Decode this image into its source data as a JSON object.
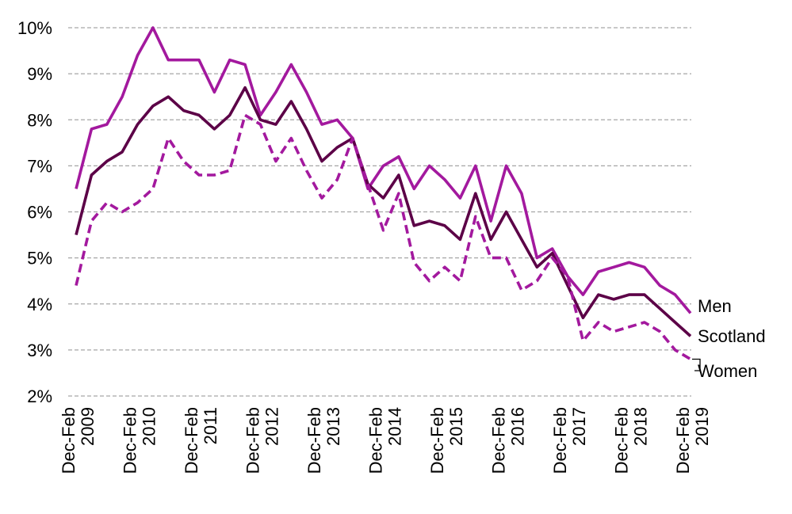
{
  "chart_data": {
    "type": "line",
    "title": "",
    "xlabel": "",
    "ylabel": "",
    "ylim": [
      2,
      10
    ],
    "y_ticks": [
      "2%",
      "3%",
      "4%",
      "5%",
      "6%",
      "7%",
      "8%",
      "9%",
      "10%"
    ],
    "grid": true,
    "legend": "inline-right",
    "x_tick_labels": [
      {
        "index": 0,
        "label": "Dec-Feb 2009"
      },
      {
        "index": 4,
        "label": "Dec-Feb 2010"
      },
      {
        "index": 8,
        "label": "Dec-Feb 2011"
      },
      {
        "index": 12,
        "label": "Dec-Feb 2012"
      },
      {
        "index": 16,
        "label": "Dec-Feb 2013"
      },
      {
        "index": 20,
        "label": "Dec-Feb 2014"
      },
      {
        "index": 24,
        "label": "Dec-Feb 2015"
      },
      {
        "index": 28,
        "label": "Dec-Feb 2016"
      },
      {
        "index": 32,
        "label": "Dec-Feb 2017"
      },
      {
        "index": 36,
        "label": "Dec-Feb 2018"
      },
      {
        "index": 40,
        "label": "Dec-Feb 2019"
      }
    ],
    "series": [
      {
        "name": "Men",
        "color": "#a3199e",
        "dash": "solid",
        "values": [
          6.5,
          7.8,
          7.9,
          8.5,
          9.4,
          10.0,
          9.3,
          9.3,
          9.3,
          8.6,
          9.3,
          9.2,
          8.1,
          8.6,
          9.2,
          8.6,
          7.9,
          8.0,
          7.6,
          6.5,
          7.0,
          7.2,
          6.5,
          7.0,
          6.7,
          6.3,
          7.0,
          5.8,
          7.0,
          6.4,
          5.0,
          5.2,
          4.6,
          4.2,
          4.7,
          4.8,
          4.9,
          4.8,
          4.4,
          4.2,
          3.8
        ]
      },
      {
        "name": "Scotland",
        "color": "#5c0047",
        "dash": "solid",
        "values": [
          5.5,
          6.8,
          7.1,
          7.3,
          7.9,
          8.3,
          8.5,
          8.2,
          8.1,
          7.8,
          8.1,
          8.7,
          8.0,
          7.9,
          8.4,
          7.8,
          7.1,
          7.4,
          7.6,
          6.6,
          6.3,
          6.8,
          5.7,
          5.8,
          5.7,
          5.4,
          6.4,
          5.4,
          6.0,
          5.4,
          4.8,
          5.1,
          4.4,
          3.7,
          4.2,
          4.1,
          4.2,
          4.2,
          3.9,
          3.6,
          3.3
        ]
      },
      {
        "name": "Women",
        "color": "#a3199e",
        "dash": "dashed",
        "values": [
          4.4,
          5.8,
          6.2,
          6.0,
          6.2,
          6.5,
          7.6,
          7.1,
          6.8,
          6.8,
          6.9,
          8.1,
          7.9,
          7.1,
          7.6,
          6.9,
          6.3,
          6.7,
          7.6,
          6.6,
          5.6,
          6.4,
          4.9,
          4.5,
          4.8,
          4.5,
          5.9,
          5.0,
          5.0,
          4.3,
          4.5,
          5.0,
          4.6,
          3.2,
          3.6,
          3.4,
          3.5,
          3.6,
          3.4,
          3.0,
          2.8
        ]
      }
    ]
  }
}
